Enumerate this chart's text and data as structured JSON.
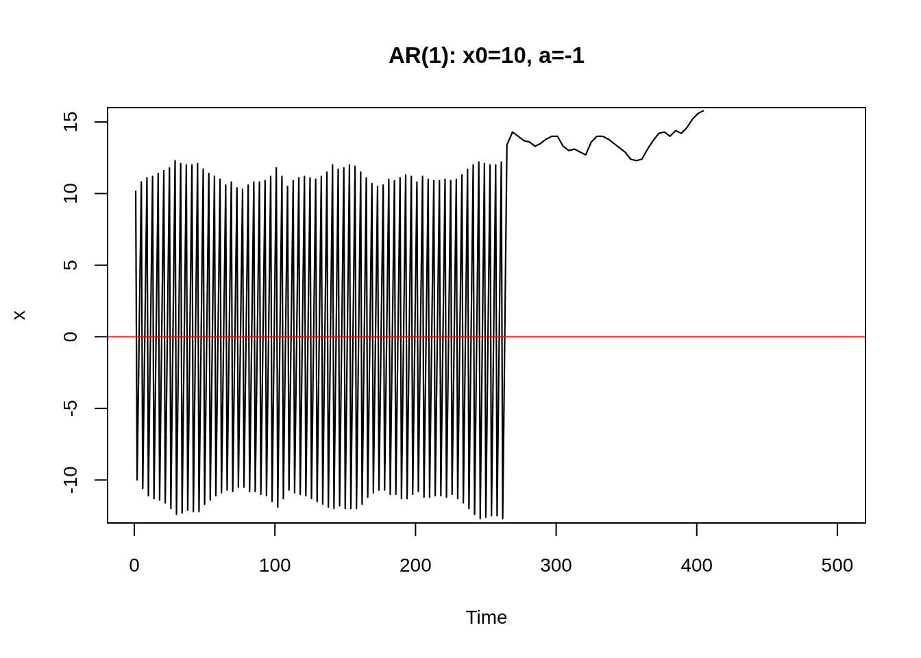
{
  "chart_data": {
    "type": "line",
    "title": "AR(1): x0=10, a=-1",
    "xlabel": "Time",
    "ylabel": "x",
    "xlim": [
      -19,
      520
    ],
    "ylim": [
      -13,
      16
    ],
    "xticks": [
      0,
      100,
      200,
      300,
      400,
      500
    ],
    "yticks": [
      -10,
      -5,
      0,
      5,
      10,
      15
    ],
    "grid": false,
    "marker": "none",
    "line_style": "solid",
    "ref_lines": [
      {
        "axis": "y",
        "value": 0,
        "color": "#ff0000"
      }
    ],
    "series": [
      {
        "color": "#000000",
        "x": [
          1,
          2,
          5,
          6,
          9,
          10,
          13,
          14,
          17,
          18,
          21,
          22,
          25,
          26,
          29,
          30,
          33,
          34,
          37,
          38,
          41,
          42,
          45,
          46,
          49,
          50,
          53,
          54,
          57,
          58,
          61,
          62,
          65,
          66,
          69,
          70,
          73,
          74,
          77,
          78,
          81,
          82,
          85,
          86,
          89,
          90,
          93,
          94,
          97,
          98,
          101,
          102,
          105,
          106,
          109,
          110,
          113,
          114,
          117,
          118,
          121,
          122,
          125,
          126,
          129,
          130,
          133,
          134,
          137,
          138,
          141,
          142,
          145,
          146,
          149,
          150,
          153,
          154,
          157,
          158,
          161,
          162,
          165,
          166,
          169,
          170,
          173,
          174,
          177,
          178,
          181,
          182,
          185,
          186,
          189,
          190,
          193,
          194,
          197,
          198,
          201,
          202,
          205,
          206,
          209,
          210,
          213,
          214,
          217,
          218,
          221,
          222,
          225,
          226,
          229,
          230,
          233,
          234,
          237,
          238,
          241,
          242,
          245,
          246,
          249,
          250,
          253,
          254,
          257,
          258,
          261,
          262,
          265,
          269,
          273,
          277,
          281,
          285,
          289,
          293,
          297,
          301,
          305,
          309,
          313,
          317,
          321,
          325,
          329,
          333,
          337,
          341,
          345,
          349,
          353,
          357,
          361,
          365,
          369,
          373,
          377,
          381,
          385,
          389,
          393,
          397,
          401,
          405
        ],
        "values": [
          10.2,
          -10.0,
          10.8,
          -10.6,
          11.1,
          -11.1,
          11.2,
          -11.3,
          11.4,
          -11.4,
          11.6,
          -11.6,
          11.8,
          -12.0,
          12.3,
          -12.4,
          12.1,
          -12.3,
          12.0,
          -12.1,
          12.0,
          -12.2,
          12.1,
          -12.2,
          11.7,
          -11.7,
          11.4,
          -11.4,
          11.2,
          -11.1,
          11.0,
          -10.9,
          10.6,
          -10.7,
          10.8,
          -10.8,
          10.4,
          -10.5,
          10.3,
          -10.5,
          10.6,
          -10.8,
          10.8,
          -10.8,
          10.8,
          -11.0,
          10.9,
          -11.1,
          11.2,
          -11.5,
          11.8,
          -11.9,
          11.2,
          -11.3,
          10.5,
          -10.7,
          10.9,
          -10.9,
          11.1,
          -11.0,
          11.2,
          -11.1,
          11.1,
          -11.3,
          11.0,
          -11.5,
          11.2,
          -11.7,
          11.5,
          -11.9,
          12.0,
          -12.0,
          11.7,
          -11.8,
          11.8,
          -12.0,
          12.0,
          -12.0,
          11.9,
          -12.0,
          11.5,
          -11.7,
          11.1,
          -11.2,
          10.7,
          -10.9,
          10.5,
          -10.7,
          10.6,
          -10.7,
          11.0,
          -11.0,
          10.9,
          -11.0,
          11.1,
          -11.3,
          11.3,
          -11.3,
          11.2,
          -11.0,
          10.8,
          -10.8,
          11.2,
          -11.2,
          11.0,
          -11.2,
          10.9,
          -11.1,
          10.9,
          -11.1,
          11.0,
          -11.2,
          10.9,
          -11.0,
          11.0,
          -11.3,
          11.3,
          -11.6,
          11.7,
          -12.0,
          12.0,
          -12.4,
          12.2,
          -12.7,
          12.1,
          -12.6,
          12.0,
          -12.5,
          12.0,
          -12.5,
          12.2,
          -12.7,
          13.4,
          14.3,
          14.0,
          13.7,
          13.6,
          13.3,
          13.5,
          13.8,
          14.0,
          14.0,
          13.3,
          13.0,
          13.1,
          12.9,
          12.7,
          13.6,
          14.0,
          14.0,
          13.8,
          13.5,
          13.2,
          12.9,
          12.4,
          12.3,
          12.4,
          13.1,
          13.7,
          14.2,
          14.3,
          14.0,
          14.4,
          14.2,
          14.6,
          15.2,
          15.6,
          15.8
        ]
      }
    ]
  }
}
